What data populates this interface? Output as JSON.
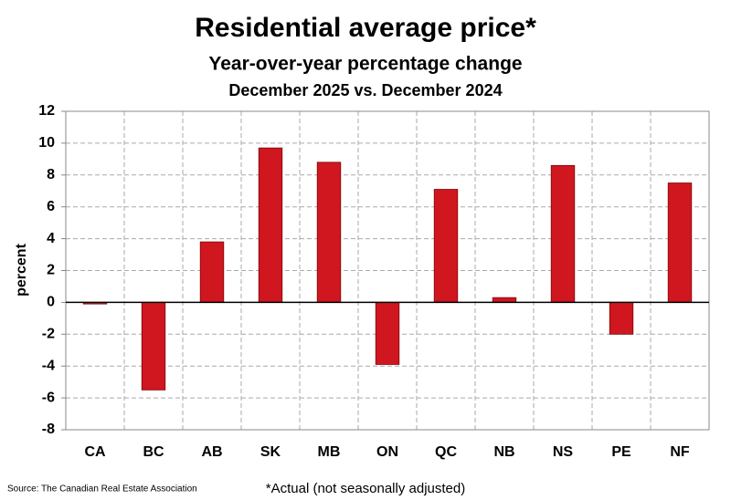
{
  "chart_data": {
    "type": "bar",
    "title": "Residential average price*",
    "subtitle": "Year-over-year percentage change",
    "subtitle2": "December 2025 vs. December 2024",
    "y_label": "percent",
    "categories": [
      "CA",
      "BC",
      "AB",
      "SK",
      "MB",
      "ON",
      "QC",
      "NB",
      "NS",
      "PE",
      "NF"
    ],
    "values": [
      -0.1,
      -5.5,
      3.8,
      9.7,
      8.8,
      -3.9,
      7.1,
      0.3,
      8.6,
      -2.0,
      7.5
    ],
    "color": "#d0161e",
    "ylim": [
      -8,
      12
    ],
    "yticks": [
      -8,
      -6,
      -4,
      -2,
      0,
      2,
      4,
      6,
      8,
      10,
      12
    ],
    "grid": true,
    "source": "Source: The Canadian Real Estate Association",
    "note": "*Actual (not seasonally adjusted)"
  }
}
